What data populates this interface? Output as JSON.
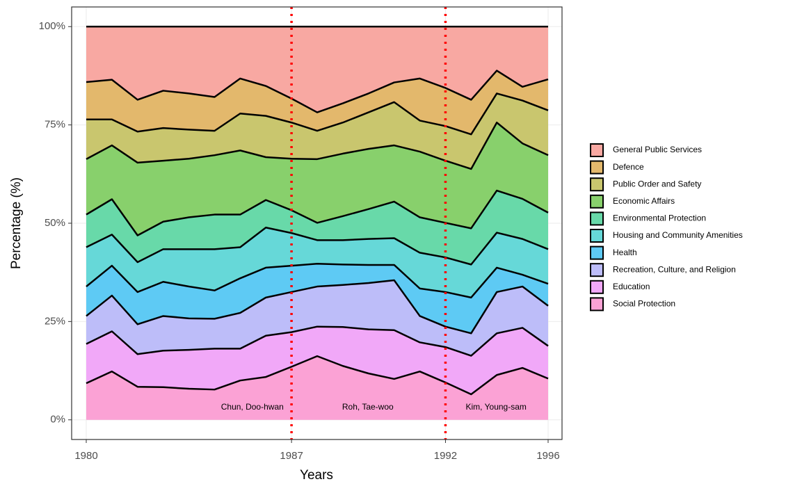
{
  "chart_data": {
    "type": "stacked_area",
    "x_label": "Years",
    "y_label": "Percentage (%)",
    "categories": [
      "1980",
      null,
      null,
      null,
      null,
      null,
      null,
      null,
      "1987",
      null,
      null,
      null,
      null,
      null,
      "1992",
      null,
      null,
      null,
      "1996"
    ],
    "ylim": [
      -5,
      105
    ],
    "yticks": [
      {
        "value": 0,
        "label": "0%"
      },
      {
        "value": 25,
        "label": "25%"
      },
      {
        "value": 50,
        "label": "50%"
      },
      {
        "value": 75,
        "label": "75%"
      },
      {
        "value": 100,
        "label": "100%"
      }
    ],
    "grid": true,
    "legend": "right",
    "annotations": [
      "Chun, Doo-hwan",
      "Roh, Tae-woo",
      "Kim, Young-sam"
    ],
    "series": [
      {
        "name": "General Public Services",
        "color": "#f8a8a2",
        "values": [
          14.1,
          13.5,
          18.6,
          16.3,
          17.0,
          17.9,
          13.2,
          15.1,
          18.3,
          21.8,
          19.5,
          17.0,
          14.2,
          13.2,
          15.6,
          18.6,
          11.2,
          15.3,
          13.4
        ]
      },
      {
        "name": "Defence",
        "color": "#e3b86c",
        "values": [
          9.5,
          10.1,
          8.1,
          9.5,
          9.2,
          8.6,
          8.9,
          7.6,
          6.1,
          4.7,
          4.9,
          4.8,
          5.0,
          10.7,
          9.7,
          8.8,
          5.8,
          3.5,
          7.9
        ]
      },
      {
        "name": "Public Order and Safety",
        "color": "#c9c66e",
        "values": [
          10.1,
          6.6,
          7.9,
          8.3,
          7.4,
          6.2,
          9.4,
          10.5,
          9.2,
          7.2,
          7.9,
          9.3,
          11.0,
          7.9,
          8.8,
          8.8,
          7.4,
          10.9,
          11.4
        ]
      },
      {
        "name": "Economic Affairs",
        "color": "#88d06c",
        "values": [
          14.1,
          13.7,
          18.5,
          15.5,
          14.9,
          15.1,
          16.3,
          10.9,
          13.1,
          16.2,
          15.9,
          15.3,
          14.3,
          16.7,
          15.8,
          15.1,
          17.3,
          14.1,
          14.6
        ]
      },
      {
        "name": "Environmental Protection",
        "color": "#68d9a9",
        "values": [
          8.3,
          9.0,
          6.8,
          7.0,
          8.1,
          8.8,
          8.3,
          7.0,
          5.8,
          4.4,
          6.1,
          7.6,
          9.3,
          9.0,
          8.8,
          9.2,
          10.7,
          10.2,
          9.3
        ]
      },
      {
        "name": "Housing and Community Amenities",
        "color": "#66d8d8",
        "values": [
          10.0,
          7.9,
          7.6,
          8.3,
          9.5,
          10.5,
          7.9,
          10.2,
          8.3,
          6.0,
          6.2,
          6.6,
          6.8,
          9.1,
          8.8,
          8.4,
          8.9,
          9.1,
          8.8
        ]
      },
      {
        "name": "Health",
        "color": "#5ecaf4",
        "values": [
          7.5,
          7.6,
          8.2,
          8.7,
          8.1,
          7.2,
          8.8,
          7.6,
          6.7,
          5.8,
          5.2,
          4.6,
          3.9,
          7.0,
          8.8,
          9.1,
          6.2,
          3.0,
          5.6
        ]
      },
      {
        "name": "Recreation, Culture, and Religion",
        "color": "#bdbdf9",
        "values": [
          7.1,
          9.1,
          7.6,
          8.8,
          8.0,
          7.6,
          9.1,
          9.7,
          10.2,
          10.2,
          10.7,
          11.8,
          12.7,
          6.7,
          5.2,
          5.7,
          10.5,
          10.5,
          10.2
        ]
      },
      {
        "name": "Education",
        "color": "#f1a8f8",
        "values": [
          10.0,
          10.2,
          8.3,
          9.3,
          9.9,
          10.4,
          8.1,
          10.5,
          8.8,
          7.5,
          9.9,
          11.2,
          12.4,
          7.4,
          9.0,
          9.8,
          10.6,
          10.2,
          8.3
        ]
      },
      {
        "name": "Social Protection",
        "color": "#fba2d5",
        "values": [
          9.3,
          12.3,
          8.4,
          8.3,
          7.9,
          7.7,
          10.0,
          10.9,
          13.5,
          16.2,
          13.7,
          11.8,
          10.4,
          12.3,
          9.5,
          6.5,
          11.4,
          13.2,
          10.5
        ]
      }
    ]
  }
}
